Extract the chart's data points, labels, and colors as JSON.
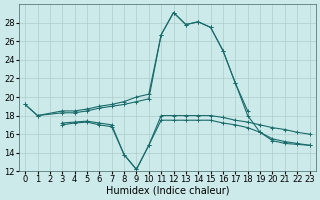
{
  "bg_color": "#cdeaea",
  "grid_color": "#b0cccc",
  "line_color": "#1a6b6b",
  "xlim": [
    -0.5,
    23.5
  ],
  "ylim": [
    12,
    30
  ],
  "yticks": [
    12,
    14,
    16,
    18,
    20,
    22,
    24,
    26,
    28
  ],
  "xticks": [
    0,
    1,
    2,
    3,
    4,
    5,
    6,
    7,
    8,
    9,
    10,
    11,
    12,
    13,
    14,
    15,
    16,
    17,
    18,
    19,
    20,
    21,
    22,
    23
  ],
  "xlabel": "Humidex (Indice chaleur)",
  "xlabel_fontsize": 7.0,
  "tick_fontsize": 6.0,
  "line1_x": [
    0,
    1,
    3,
    4,
    5,
    6,
    7,
    8,
    9,
    10,
    11,
    12,
    13,
    14,
    15,
    16,
    17,
    18
  ],
  "line1_y": [
    19.2,
    18.0,
    18.5,
    18.5,
    18.7,
    19.0,
    19.2,
    19.5,
    20.0,
    20.3,
    26.7,
    29.1,
    27.8,
    28.1,
    27.5,
    25.0,
    21.5,
    18.5
  ],
  "line2_x": [
    3,
    4,
    5,
    6,
    7,
    8,
    9,
    10,
    11,
    12,
    13,
    14,
    15,
    16,
    17,
    18,
    19,
    20,
    21,
    22,
    23
  ],
  "line2_y": [
    17.0,
    17.2,
    17.3,
    17.0,
    16.8,
    13.8,
    12.2,
    14.8,
    18.0,
    18.0,
    18.0,
    18.0,
    18.0,
    17.8,
    17.5,
    17.3,
    17.0,
    16.7,
    16.5,
    16.2,
    16.0
  ],
  "line3_x": [
    3,
    4,
    5,
    6,
    7,
    8,
    9,
    10,
    11,
    12,
    13,
    14,
    15,
    16,
    17,
    18,
    19,
    20,
    21,
    22,
    23
  ],
  "line3_y": [
    17.2,
    17.3,
    17.4,
    17.2,
    17.0,
    13.8,
    12.2,
    14.8,
    17.5,
    17.5,
    17.5,
    17.5,
    17.5,
    17.2,
    17.0,
    16.7,
    16.2,
    15.5,
    15.2,
    15.0,
    14.8
  ],
  "line4_x": [
    0,
    1,
    3,
    4,
    5,
    6,
    7,
    8,
    9,
    10,
    11,
    12,
    13,
    14,
    15,
    16,
    17,
    18,
    19,
    20,
    21,
    22,
    23
  ],
  "line4_y": [
    19.2,
    18.0,
    18.3,
    18.3,
    18.5,
    18.8,
    19.0,
    19.2,
    19.5,
    19.8,
    26.7,
    29.1,
    27.8,
    28.1,
    27.5,
    25.0,
    21.5,
    18.0,
    16.2,
    15.3,
    15.0,
    14.9,
    14.8
  ]
}
